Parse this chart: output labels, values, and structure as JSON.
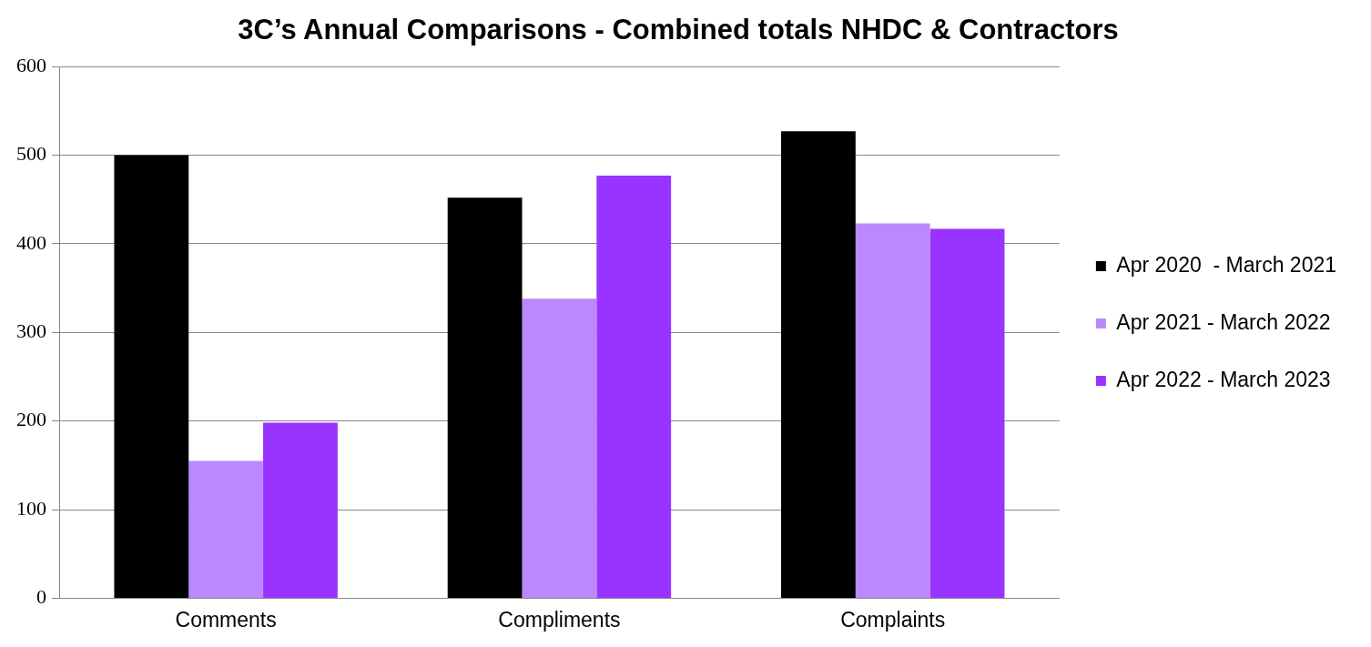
{
  "chart_data": {
    "type": "bar",
    "title": "3C’s Annual Comparisons - Combined totals NHDC & Contractors",
    "categories": [
      "Comments",
      "Compliments",
      "Complaints"
    ],
    "series": [
      {
        "name": "Apr 2020  - March 2021",
        "color": "#000000",
        "values": [
          500,
          452,
          527
        ]
      },
      {
        "name": "Apr 2021 - March 2022",
        "color": "#bb88ff",
        "values": [
          155,
          338,
          423
        ]
      },
      {
        "name": "Apr 2022 - March 2023",
        "color": "#9933ff",
        "values": [
          198,
          477,
          417
        ]
      }
    ],
    "ylim": [
      0,
      600
    ],
    "yticks": [
      0,
      100,
      200,
      300,
      400,
      500,
      600
    ],
    "grid": "y",
    "legend": "right"
  }
}
